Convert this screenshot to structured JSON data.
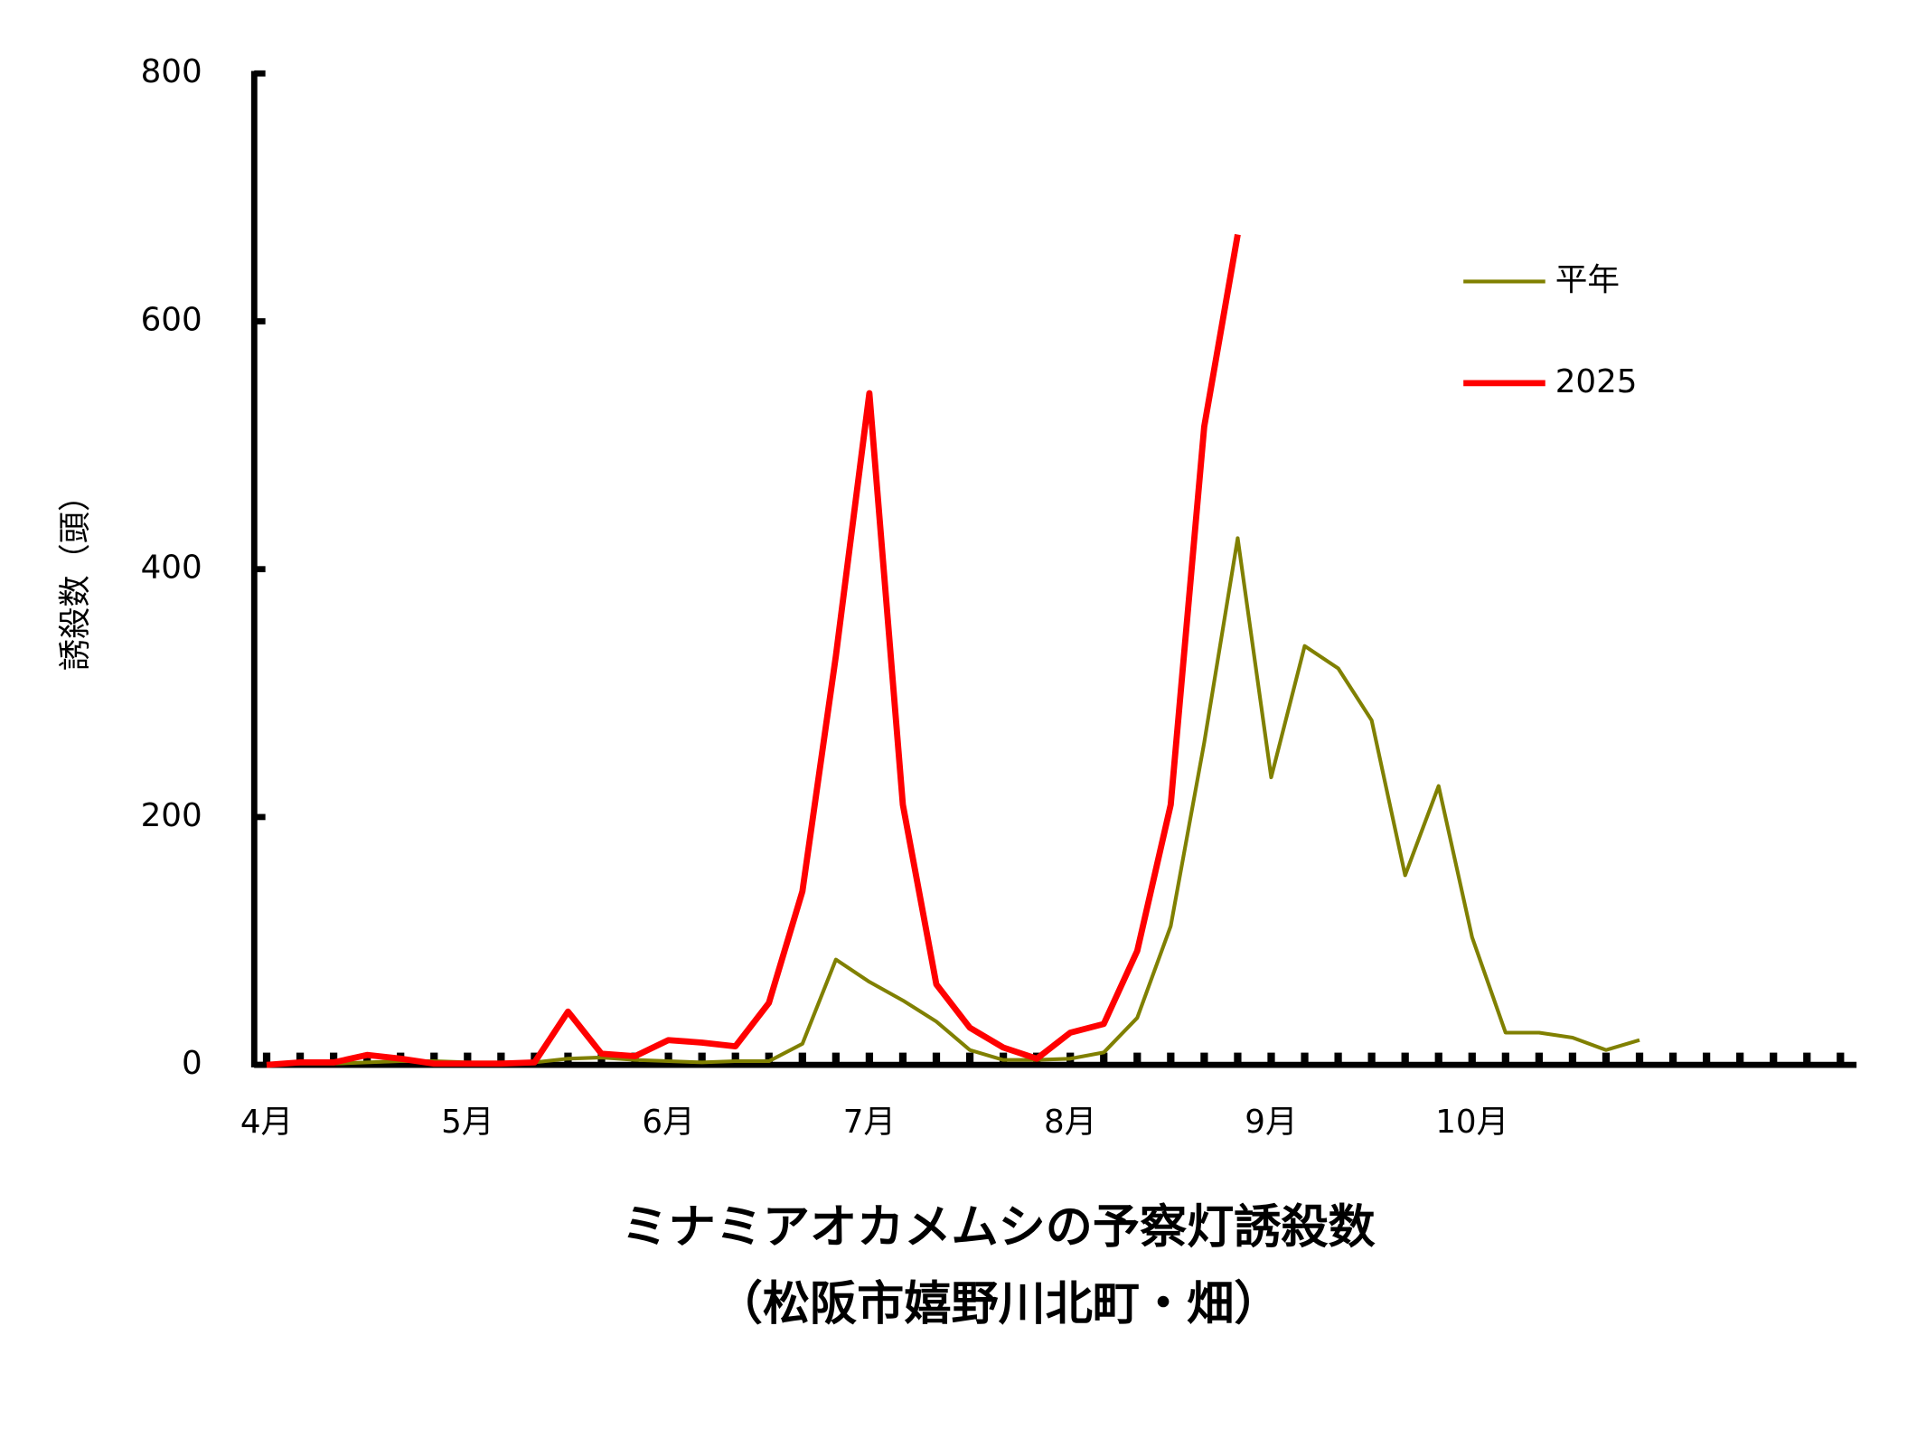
{
  "chart_data": {
    "type": "line",
    "title": "ミナミアオカメムシの予察灯誘殺数",
    "subtitle": "（松阪市嬉野川北町・畑）",
    "y_label": "誘殺数（頭）",
    "categories": [
      "4月",
      null,
      null,
      null,
      null,
      null,
      "5月",
      null,
      null,
      null,
      null,
      null,
      "6月",
      null,
      null,
      null,
      null,
      null,
      "7月",
      null,
      null,
      null,
      null,
      null,
      "8月",
      null,
      null,
      null,
      null,
      null,
      "9月",
      null,
      null,
      null,
      null,
      null,
      "10月",
      null,
      null,
      null,
      null,
      null,
      null,
      null,
      null,
      null,
      null,
      null
    ],
    "series": [
      {
        "name": "平年",
        "color": "#808000",
        "values": [
          0,
          1,
          1,
          2,
          3,
          3,
          2,
          2,
          2,
          5,
          6,
          4,
          3,
          2,
          3,
          3,
          17,
          85,
          67,
          52,
          35,
          12,
          4,
          4,
          5,
          10,
          38,
          112,
          260,
          425,
          232,
          338,
          320,
          278,
          153,
          225,
          103,
          26,
          26,
          22,
          12,
          20,
          null,
          null,
          null,
          null,
          null,
          null
        ]
      },
      {
        "name": "2025",
        "color": "#ff0000",
        "values": [
          0,
          2,
          2,
          8,
          5,
          1,
          1,
          1,
          2,
          43,
          9,
          7,
          20,
          18,
          15,
          50,
          140,
          330,
          542,
          210,
          65,
          30,
          14,
          5,
          26,
          33,
          92,
          210,
          515,
          670,
          null,
          null,
          null,
          null,
          null,
          null,
          null,
          null,
          null,
          null,
          null,
          null,
          null,
          null,
          null,
          null,
          null,
          null
        ]
      }
    ],
    "ylim": [
      0,
      800
    ],
    "yticks": [
      0,
      200,
      400,
      600,
      800
    ]
  }
}
